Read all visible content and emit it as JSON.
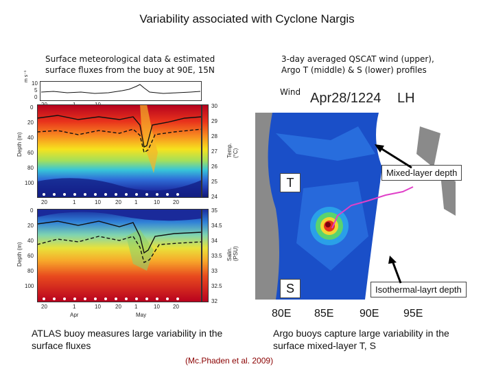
{
  "slide": {
    "title": "Variability associated with Cyclone Nargis",
    "left_caption": "Surface meteorological data & estimated surface fluxes from the buoy at 90E, 15N",
    "right_caption": "3-day averaged QSCAT wind (upper), Argo T (middle) & S (lower) profiles",
    "bottom_left_text": "ATLAS buoy measures large variability in the surface fluxes",
    "bottom_right_text": "Argo buoys capture large variability in the surface mixed-layer T, S",
    "citation": "(Mc.Phaden et al. 2009)"
  },
  "left_figure": {
    "wind_ylabel": "m s⁻¹",
    "wind_ticks": [
      "10",
      "5",
      "0"
    ],
    "depth_label": "Depth (m)",
    "depth_ticks": [
      "0",
      "20",
      "40",
      "60",
      "80",
      "100"
    ],
    "day_ticks": [
      "20",
      "1",
      "10",
      "20",
      "1",
      "10",
      "20"
    ],
    "month_labels": [
      "Apr",
      "May"
    ],
    "temp_colorbar_label": "Temp. (°C)",
    "temp_colorbar_ticks": [
      "30",
      "29",
      "28",
      "27",
      "26",
      "25",
      "24"
    ],
    "salt_colorbar_label": "Salin. (PSU)",
    "salt_colorbar_ticks": [
      "35",
      "34.5",
      "34",
      "33.5",
      "33",
      "32.5",
      "32"
    ]
  },
  "right_figure": {
    "wind_label": "Wind",
    "map_title": "Apr28/1224",
    "map_title_suffix": "LH",
    "t_label": "T",
    "s_label": "S",
    "mixed_layer_label": "Mixed-layer depth",
    "isothermal_label": "Isothermal-layrt depth",
    "lon_ticks": [
      "80E",
      "85E",
      "90E",
      "95E"
    ]
  },
  "colors": {
    "ocean_blue": "#1a4fc8",
    "land_grey": "#8a8a8a",
    "track_magenta": "#e040c8"
  }
}
